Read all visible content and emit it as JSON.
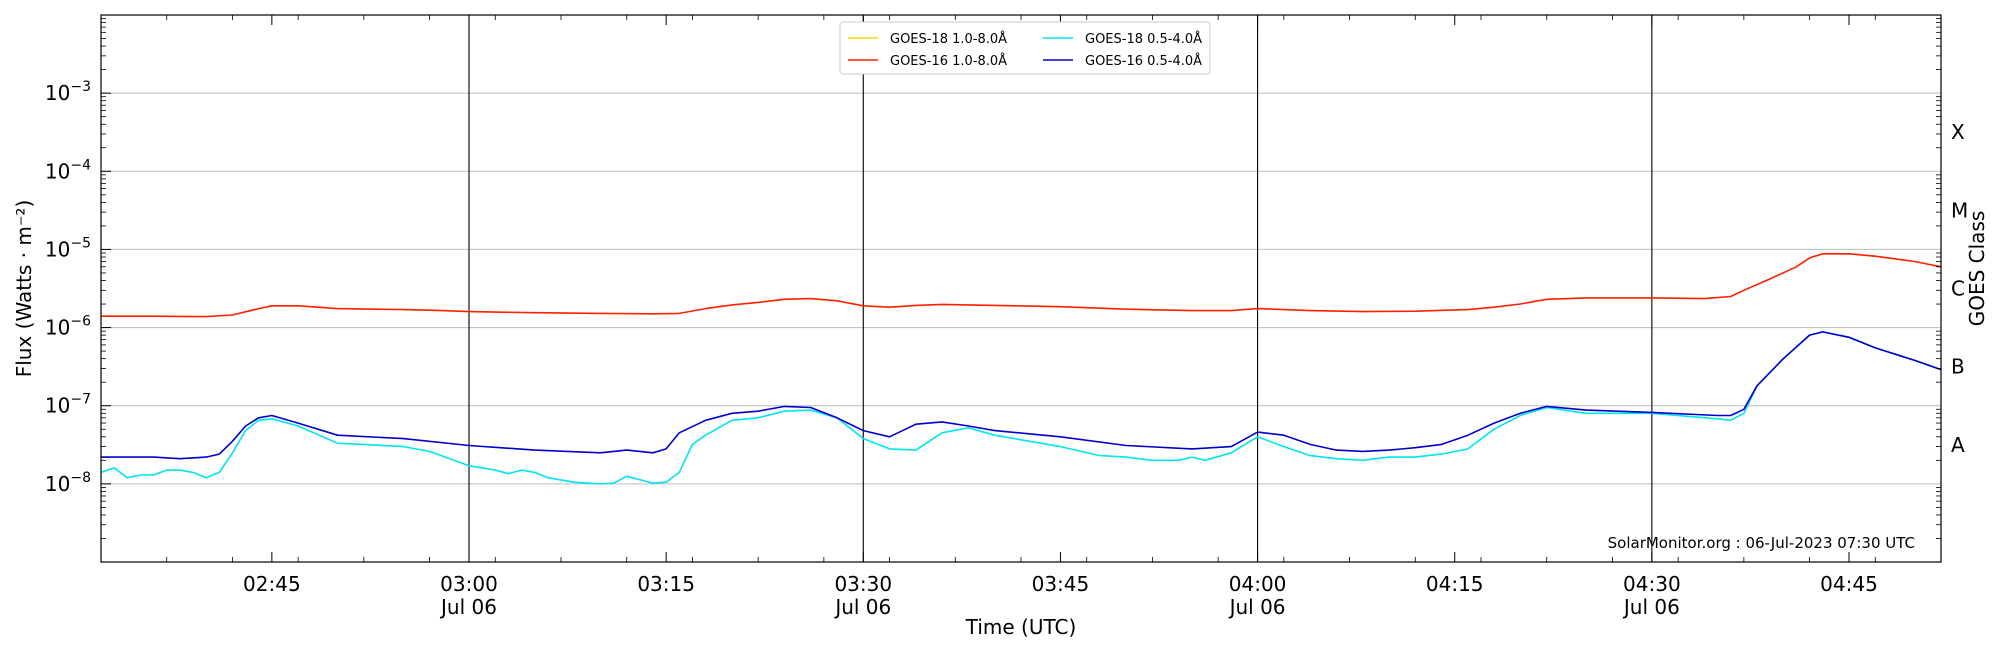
{
  "chart_data": {
    "type": "line",
    "xlabel": "Time (UTC)",
    "ylabel": "Flux (Watts · m⁻²)",
    "right_label": "GOES Class",
    "annotation": "SolarMonitor.org : 06-Jul-2023 07:30 UTC",
    "x_range": [
      "02:32",
      "04:52"
    ],
    "y_range": [
      1e-09,
      0.01
    ],
    "y_scale": "log",
    "y_ticks": [
      {
        "value": 1e-08,
        "base": "10",
        "exp": "−8"
      },
      {
        "value": 1e-07,
        "base": "10",
        "exp": "−7"
      },
      {
        "value": 1e-06,
        "base": "10",
        "exp": "−6"
      },
      {
        "value": 1e-05,
        "base": "10",
        "exp": "−5"
      },
      {
        "value": 0.0001,
        "base": "10",
        "exp": "−4"
      },
      {
        "value": 0.001,
        "base": "10",
        "exp": "−3"
      }
    ],
    "x_ticks": [
      {
        "time": "02:45",
        "label": "02:45",
        "sub": ""
      },
      {
        "time": "03:00",
        "label": "03:00",
        "sub": "Jul 06"
      },
      {
        "time": "03:15",
        "label": "03:15",
        "sub": ""
      },
      {
        "time": "03:30",
        "label": "03:30",
        "sub": "Jul 06"
      },
      {
        "time": "03:45",
        "label": "03:45",
        "sub": ""
      },
      {
        "time": "04:00",
        "label": "04:00",
        "sub": "Jul 06"
      },
      {
        "time": "04:15",
        "label": "04:15",
        "sub": ""
      },
      {
        "time": "04:30",
        "label": "04:30",
        "sub": "Jul 06"
      },
      {
        "time": "04:45",
        "label": "04:45",
        "sub": ""
      }
    ],
    "vertical_lines": [
      "03:00",
      "03:30",
      "04:00",
      "04:30"
    ],
    "goes_classes": [
      {
        "label": "A",
        "low": 1e-08,
        "high": 1e-07
      },
      {
        "label": "B",
        "low": 1e-07,
        "high": 1e-06
      },
      {
        "label": "C",
        "low": 1e-06,
        "high": 1e-05
      },
      {
        "label": "M",
        "low": 1e-05,
        "high": 0.0001
      },
      {
        "label": "X",
        "low": 0.0001,
        "high": 0.001
      }
    ],
    "legend_location": "upper-center",
    "series": [
      {
        "name": "GOES-18 1.0-8.0Å",
        "color": "#ffd700",
        "x": [],
        "y": []
      },
      {
        "name": "GOES-16 1.0-8.0Å",
        "color": "#ff2000",
        "x": [
          "02:32",
          "02:36",
          "02:39",
          "02:40",
          "02:42",
          "02:44",
          "02:45",
          "02:47",
          "02:50",
          "02:55",
          "02:58",
          "03:00",
          "03:05",
          "03:10",
          "03:14",
          "03:16",
          "03:18",
          "03:20",
          "03:22",
          "03:24",
          "03:26",
          "03:28",
          "03:30",
          "03:32",
          "03:34",
          "03:36",
          "03:40",
          "03:45",
          "03:50",
          "03:55",
          "03:58",
          "04:00",
          "04:04",
          "04:08",
          "04:12",
          "04:16",
          "04:18",
          "04:20",
          "04:22",
          "04:25",
          "04:30",
          "04:34",
          "04:36",
          "04:37",
          "04:39",
          "04:41",
          "04:42",
          "04:43",
          "04:45",
          "04:47",
          "04:50",
          "04:52"
        ],
        "y": [
          1.4e-06,
          1.4e-06,
          1.38e-06,
          1.38e-06,
          1.45e-06,
          1.75e-06,
          1.9e-06,
          1.9e-06,
          1.75e-06,
          1.7e-06,
          1.65e-06,
          1.6e-06,
          1.55e-06,
          1.52e-06,
          1.5e-06,
          1.52e-06,
          1.75e-06,
          1.95e-06,
          2.1e-06,
          2.3e-06,
          2.35e-06,
          2.2e-06,
          1.9e-06,
          1.82e-06,
          1.92e-06,
          1.98e-06,
          1.92e-06,
          1.85e-06,
          1.72e-06,
          1.65e-06,
          1.65e-06,
          1.75e-06,
          1.65e-06,
          1.6e-06,
          1.62e-06,
          1.7e-06,
          1.82e-06,
          2e-06,
          2.3e-06,
          2.4e-06,
          2.4e-06,
          2.35e-06,
          2.5e-06,
          3e-06,
          4.2e-06,
          6e-06,
          7.8e-06,
          8.8e-06,
          8.8e-06,
          8.2e-06,
          7e-06,
          6e-06
        ]
      },
      {
        "name": "GOES-18 0.5-4.0Å",
        "color": "#00e5ee",
        "x": [
          "02:32",
          "02:33",
          "02:34",
          "02:35",
          "02:36",
          "02:37",
          "02:38",
          "02:39",
          "02:40",
          "02:41",
          "02:42",
          "02:43",
          "02:44",
          "02:45",
          "02:47",
          "02:50",
          "02:52",
          "02:55",
          "02:57",
          "03:00",
          "03:02",
          "03:03",
          "03:04",
          "03:05",
          "03:06",
          "03:08",
          "03:10",
          "03:11",
          "03:12",
          "03:14",
          "03:15",
          "03:16",
          "03:17",
          "03:18",
          "03:20",
          "03:22",
          "03:24",
          "03:26",
          "03:28",
          "03:30",
          "03:32",
          "03:34",
          "03:36",
          "03:38",
          "03:40",
          "03:45",
          "03:48",
          "03:50",
          "03:52",
          "03:54",
          "03:55",
          "03:56",
          "03:58",
          "04:00",
          "04:02",
          "04:04",
          "04:06",
          "04:08",
          "04:10",
          "04:12",
          "04:14",
          "04:16",
          "04:18",
          "04:20",
          "04:22",
          "04:25",
          "04:30",
          "04:35",
          "04:36",
          "04:37",
          "04:38",
          "04:40",
          "04:42",
          "04:43",
          "04:45",
          "04:47",
          "04:50",
          "04:52"
        ],
        "y": [
          1.4e-08,
          1.6e-08,
          1.2e-08,
          1.3e-08,
          1.3e-08,
          1.5e-08,
          1.5e-08,
          1.4e-08,
          1.2e-08,
          1.4e-08,
          2.5e-08,
          4.8e-08,
          6.5e-08,
          6.8e-08,
          5.5e-08,
          3.3e-08,
          3.2e-08,
          3e-08,
          2.6e-08,
          1.7e-08,
          1.5e-08,
          1.35e-08,
          1.5e-08,
          1.4e-08,
          1.2e-08,
          1.05e-08,
          1e-08,
          1.02e-08,
          1.25e-08,
          1.02e-08,
          1.05e-08,
          1.4e-08,
          3.2e-08,
          4.2e-08,
          6.5e-08,
          7e-08,
          8.5e-08,
          8.8e-08,
          7e-08,
          3.8e-08,
          2.8e-08,
          2.7e-08,
          4.5e-08,
          5.2e-08,
          4.2e-08,
          3e-08,
          2.3e-08,
          2.2e-08,
          2e-08,
          2e-08,
          2.2e-08,
          2e-08,
          2.5e-08,
          4e-08,
          3e-08,
          2.3e-08,
          2.1e-08,
          2e-08,
          2.2e-08,
          2.2e-08,
          2.4e-08,
          2.8e-08,
          5e-08,
          7.5e-08,
          9.5e-08,
          8e-08,
          8e-08,
          6.8e-08,
          6.5e-08,
          8e-08,
          1.8e-07,
          4e-07,
          8e-07,
          8.8e-07,
          7.5e-07,
          5.5e-07,
          3.8e-07,
          2.9e-07
        ]
      },
      {
        "name": "GOES-16 0.5-4.0Å",
        "color": "#0000cd",
        "x": [
          "02:32",
          "02:34",
          "02:36",
          "02:38",
          "02:40",
          "02:41",
          "02:42",
          "02:43",
          "02:44",
          "02:45",
          "02:47",
          "02:50",
          "02:55",
          "03:00",
          "03:05",
          "03:10",
          "03:12",
          "03:14",
          "03:15",
          "03:16",
          "03:18",
          "03:20",
          "03:22",
          "03:24",
          "03:26",
          "03:28",
          "03:30",
          "03:32",
          "03:34",
          "03:36",
          "03:38",
          "03:40",
          "03:45",
          "03:50",
          "03:55",
          "03:58",
          "04:00",
          "04:02",
          "04:04",
          "04:06",
          "04:08",
          "04:10",
          "04:12",
          "04:14",
          "04:16",
          "04:18",
          "04:20",
          "04:22",
          "04:25",
          "04:30",
          "04:35",
          "04:36",
          "04:37",
          "04:38",
          "04:40",
          "04:42",
          "04:43",
          "04:45",
          "04:47",
          "04:50",
          "04:52"
        ],
        "y": [
          2.2e-08,
          2.2e-08,
          2.2e-08,
          2.1e-08,
          2.2e-08,
          2.4e-08,
          3.5e-08,
          5.5e-08,
          7e-08,
          7.5e-08,
          6e-08,
          4.2e-08,
          3.8e-08,
          3.1e-08,
          2.7e-08,
          2.5e-08,
          2.7e-08,
          2.5e-08,
          2.8e-08,
          4.5e-08,
          6.5e-08,
          8e-08,
          8.5e-08,
          9.8e-08,
          9.5e-08,
          7e-08,
          4.8e-08,
          4e-08,
          5.8e-08,
          6.2e-08,
          5.5e-08,
          4.8e-08,
          4e-08,
          3.1e-08,
          2.8e-08,
          3e-08,
          4.6e-08,
          4.2e-08,
          3.2e-08,
          2.7e-08,
          2.6e-08,
          2.7e-08,
          2.9e-08,
          3.2e-08,
          4.2e-08,
          6e-08,
          8e-08,
          9.8e-08,
          8.8e-08,
          8.2e-08,
          7.5e-08,
          7.5e-08,
          9e-08,
          1.8e-07,
          4e-07,
          8e-07,
          8.8e-07,
          7.5e-07,
          5.5e-07,
          3.8e-07,
          2.9e-07
        ]
      }
    ]
  }
}
